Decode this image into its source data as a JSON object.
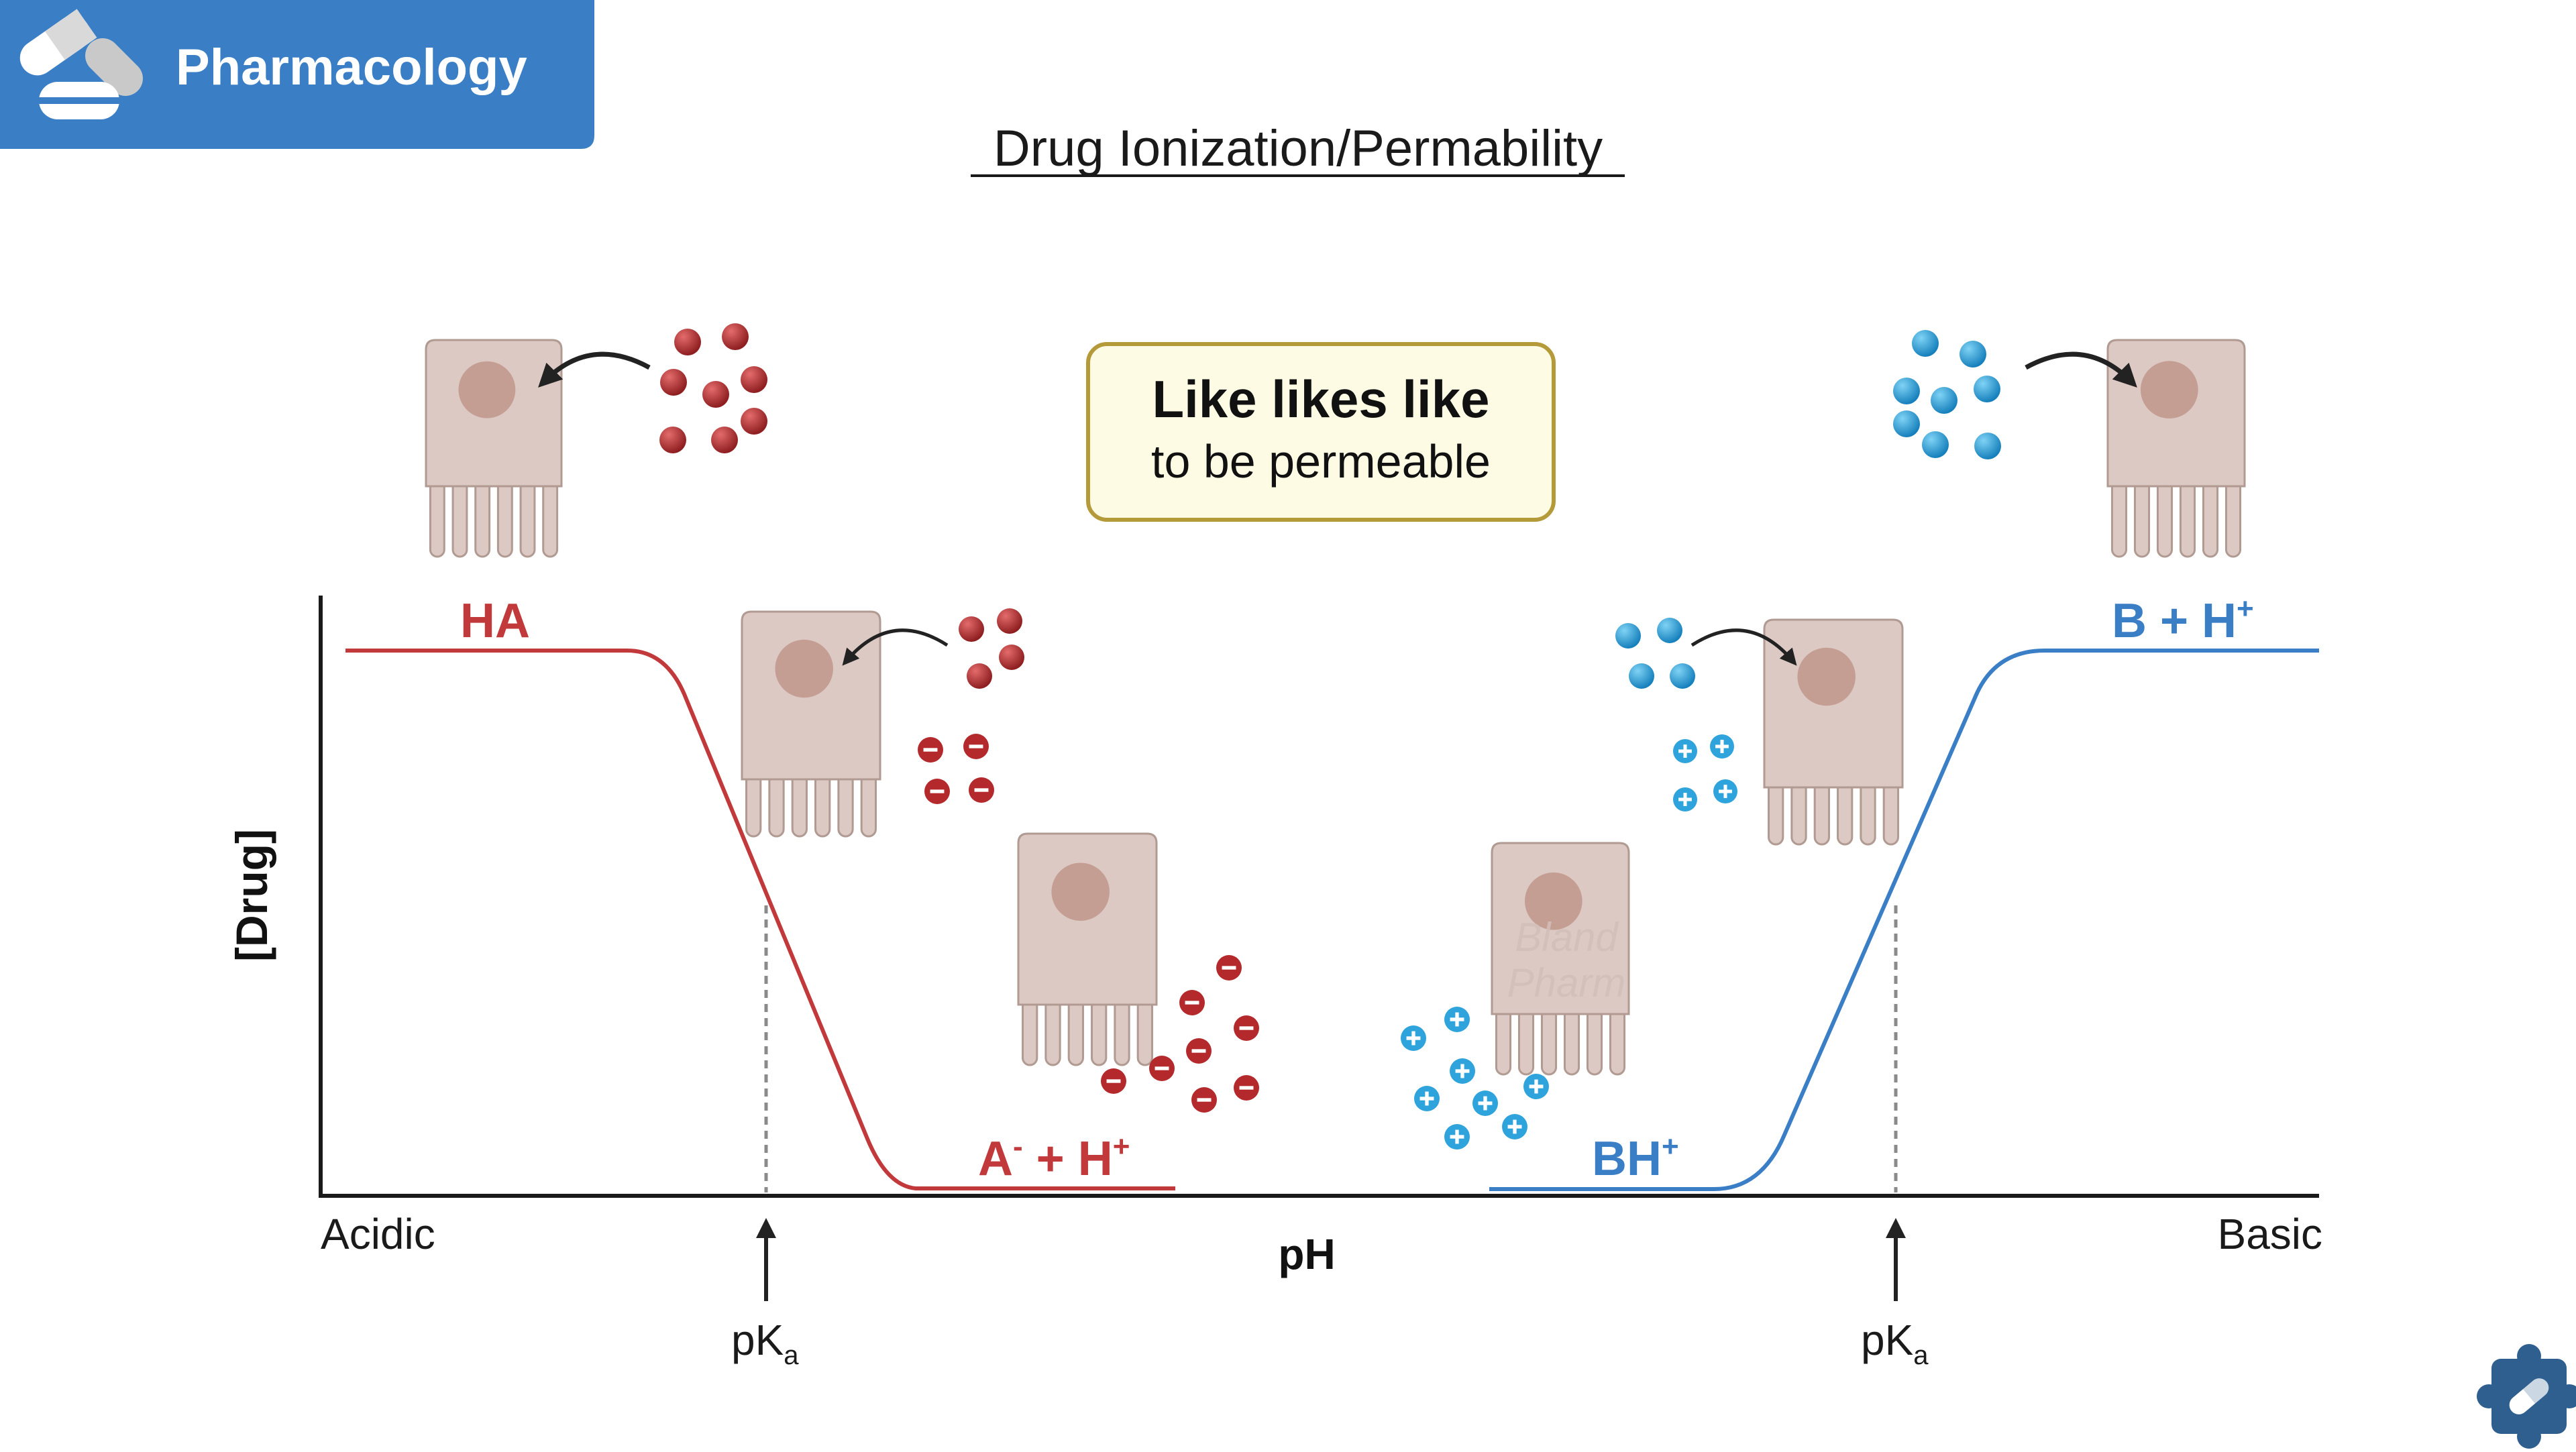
{
  "header": {
    "badge_label": "Pharmacology",
    "icon": "pill-capsule-icon",
    "badge_color": "#3A7EC6"
  },
  "title": "Drug Ionization/Permability",
  "callout": {
    "line1": "Like likes like",
    "line2": "to be permeable",
    "fill": "#FDFBE4",
    "border": "#B59A3A"
  },
  "axes": {
    "y_label": "[Drug]",
    "x_label": "pH",
    "x_left": "Acidic",
    "x_right": "Basic"
  },
  "acid": {
    "color": "#C2393B",
    "unionized_label": "HA",
    "ionized_label_main": "A",
    "ionized_label_sup": "-",
    "ionized_label_rest": " + H",
    "ionized_label_rest_sup": "+",
    "pka_main": "pK",
    "pka_sub": "a"
  },
  "base": {
    "color": "#3A7EC6",
    "unionized_label_main": "B + H",
    "unionized_label_sup": "+",
    "ionized_label_main": "BH",
    "ionized_label_sup": "+",
    "pka_main": "pK",
    "pka_sub": "a"
  },
  "watermark": {
    "line1": "Bland",
    "line2": "Pharm"
  },
  "colors": {
    "cell_fill": "#DCC9C3",
    "cell_stroke": "#B09A92",
    "nucleus": "#C59E93",
    "acid_particle": "#B42A2C",
    "base_particle": "#2FA3DB",
    "axis": "#1A1A1A",
    "logo": "#2E5F8F"
  }
}
